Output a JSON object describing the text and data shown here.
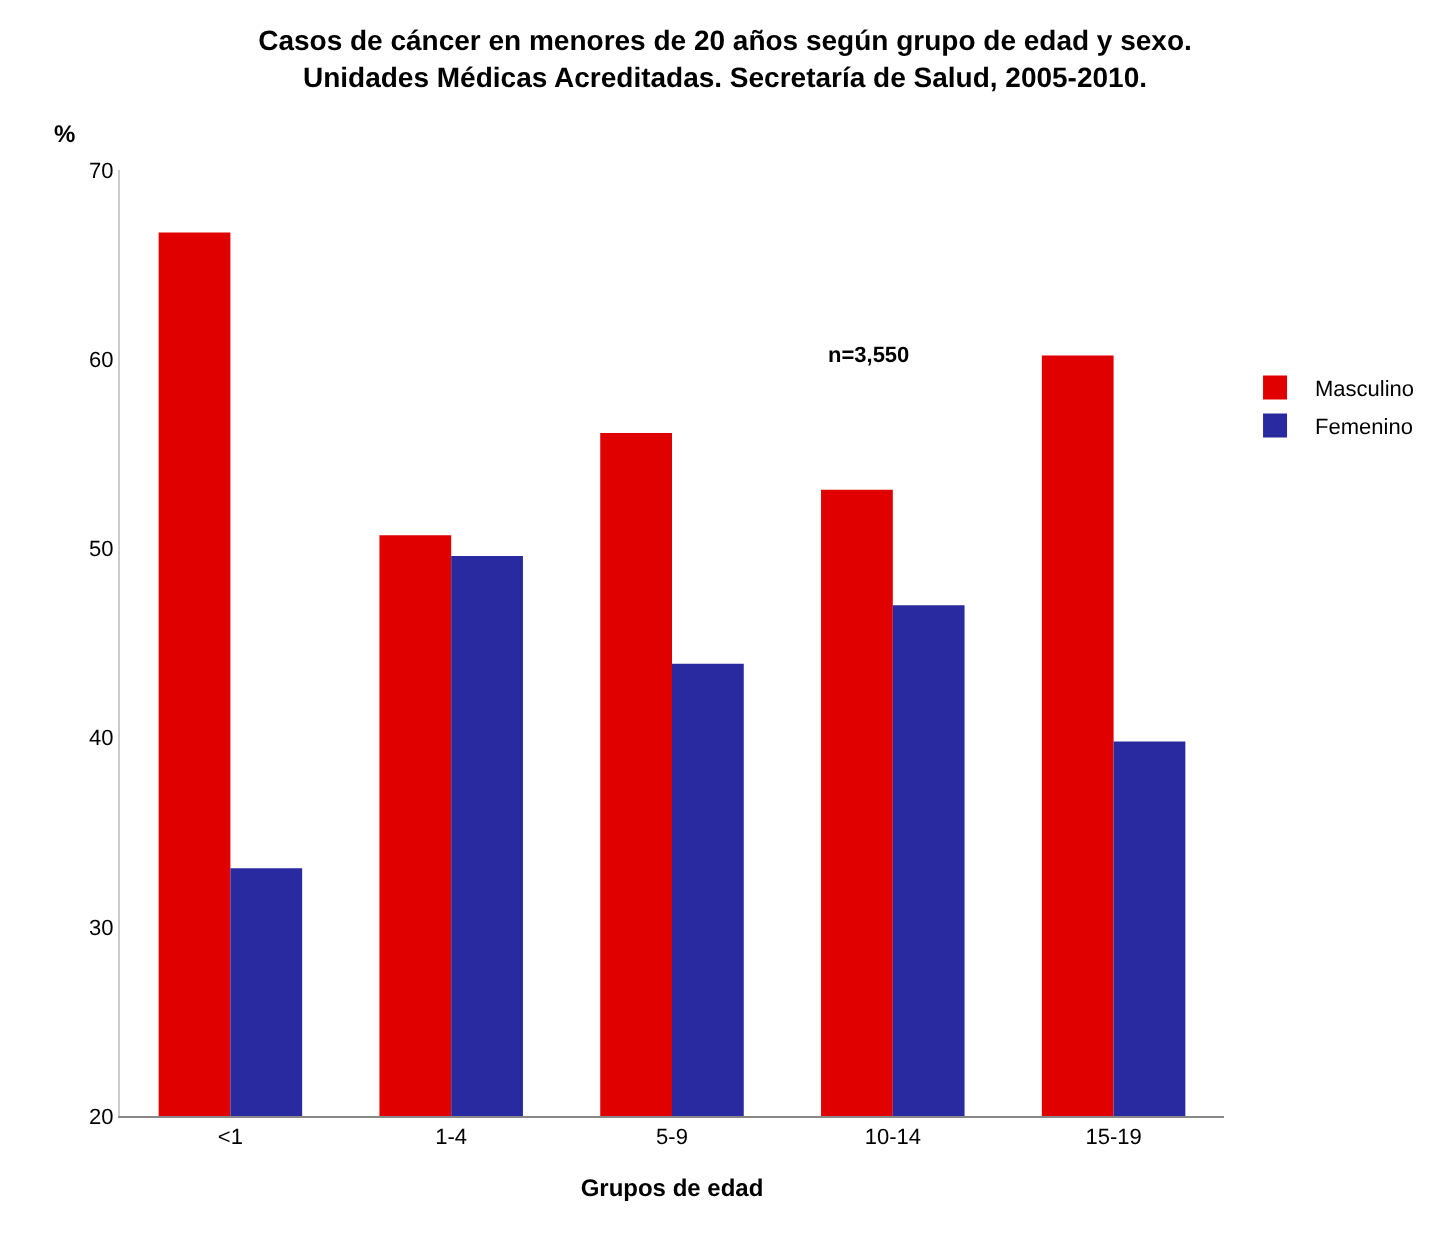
{
  "chart_data": {
    "type": "bar",
    "title": "Casos de cáncer en menores de 20 años según grupo de edad y sexo.",
    "subtitle": "Unidades Médicas Acreditadas. Secretaría de Salud, 2005-2010.",
    "xlabel": "Grupos de edad",
    "ylabel": "%",
    "categories": [
      "<1",
      "1-4",
      "5-9",
      "10-14",
      "15-19"
    ],
    "series": [
      {
        "name": "Masculino",
        "color": "#e00000",
        "values": [
          66.7,
          50.7,
          56.1,
          53.1,
          60.2
        ]
      },
      {
        "name": "Femenino",
        "color": "#2a2aa0",
        "values": [
          33.1,
          49.6,
          43.9,
          47.0,
          39.8
        ]
      }
    ],
    "ylim": [
      20,
      70
    ],
    "yticks": [
      20,
      30,
      40,
      50,
      60,
      70
    ],
    "legend": "right",
    "annotations": [
      "n=3,550"
    ]
  }
}
